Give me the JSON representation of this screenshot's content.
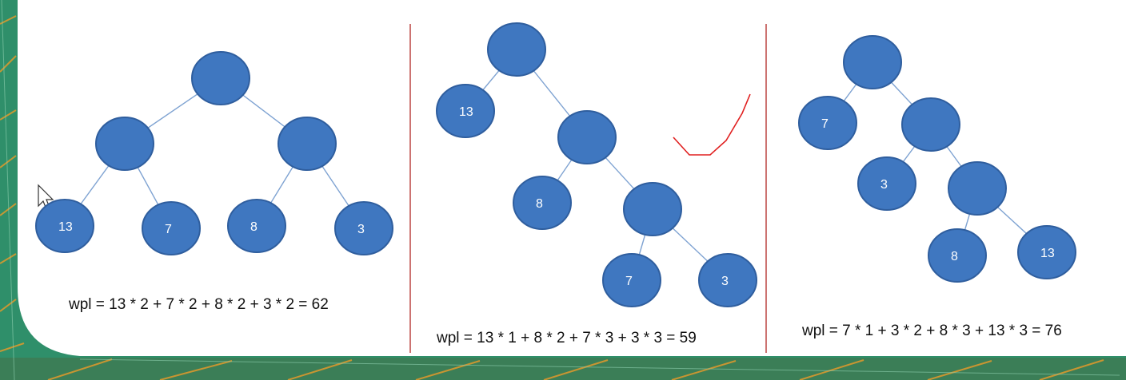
{
  "colors": {
    "node_fill": "#3f77c0",
    "edge": "#7fa3d2",
    "divider": "#c0504d",
    "scribble": "#e02020",
    "frame_green": "#2f8f6a",
    "frame_orange": "#e29a2b"
  },
  "icons": {
    "cursor": "mouse-pointer-icon"
  },
  "trees": [
    {
      "nodes": [
        {
          "id": "r",
          "label": ""
        },
        {
          "id": "a",
          "label": ""
        },
        {
          "id": "b",
          "label": ""
        },
        {
          "id": "l13",
          "label": "13"
        },
        {
          "id": "l7",
          "label": "7"
        },
        {
          "id": "l8",
          "label": "8"
        },
        {
          "id": "l3",
          "label": "3"
        }
      ],
      "edges": [
        [
          "r",
          "a"
        ],
        [
          "r",
          "b"
        ],
        [
          "a",
          "l13"
        ],
        [
          "a",
          "l7"
        ],
        [
          "b",
          "l8"
        ],
        [
          "b",
          "l3"
        ]
      ],
      "formula": "wpl = 13 * 2 + 7 * 2 + 8 * 2 + 3 * 2 = 62"
    },
    {
      "nodes": [
        {
          "id": "r",
          "label": ""
        },
        {
          "id": "l13",
          "label": "13"
        },
        {
          "id": "a",
          "label": ""
        },
        {
          "id": "l8",
          "label": "8"
        },
        {
          "id": "b",
          "label": ""
        },
        {
          "id": "l7",
          "label": "7"
        },
        {
          "id": "l3",
          "label": "3"
        }
      ],
      "edges": [
        [
          "r",
          "l13"
        ],
        [
          "r",
          "a"
        ],
        [
          "a",
          "l8"
        ],
        [
          "a",
          "b"
        ],
        [
          "b",
          "l7"
        ],
        [
          "b",
          "l3"
        ]
      ],
      "formula": "wpl = 13 * 1 + 8 * 2 + 7 * 3 + 3 * 3 = 59"
    },
    {
      "nodes": [
        {
          "id": "r",
          "label": ""
        },
        {
          "id": "l7",
          "label": "7"
        },
        {
          "id": "a",
          "label": ""
        },
        {
          "id": "l3",
          "label": "3"
        },
        {
          "id": "b",
          "label": ""
        },
        {
          "id": "l8",
          "label": "8"
        },
        {
          "id": "l13",
          "label": "13"
        }
      ],
      "edges": [
        [
          "r",
          "l7"
        ],
        [
          "r",
          "a"
        ],
        [
          "a",
          "l3"
        ],
        [
          "a",
          "b"
        ],
        [
          "b",
          "l8"
        ],
        [
          "b",
          "l13"
        ]
      ],
      "formula": "wpl = 7 * 1 + 3 * 2 + 8 * 3 + 13 * 3 = 76"
    }
  ]
}
